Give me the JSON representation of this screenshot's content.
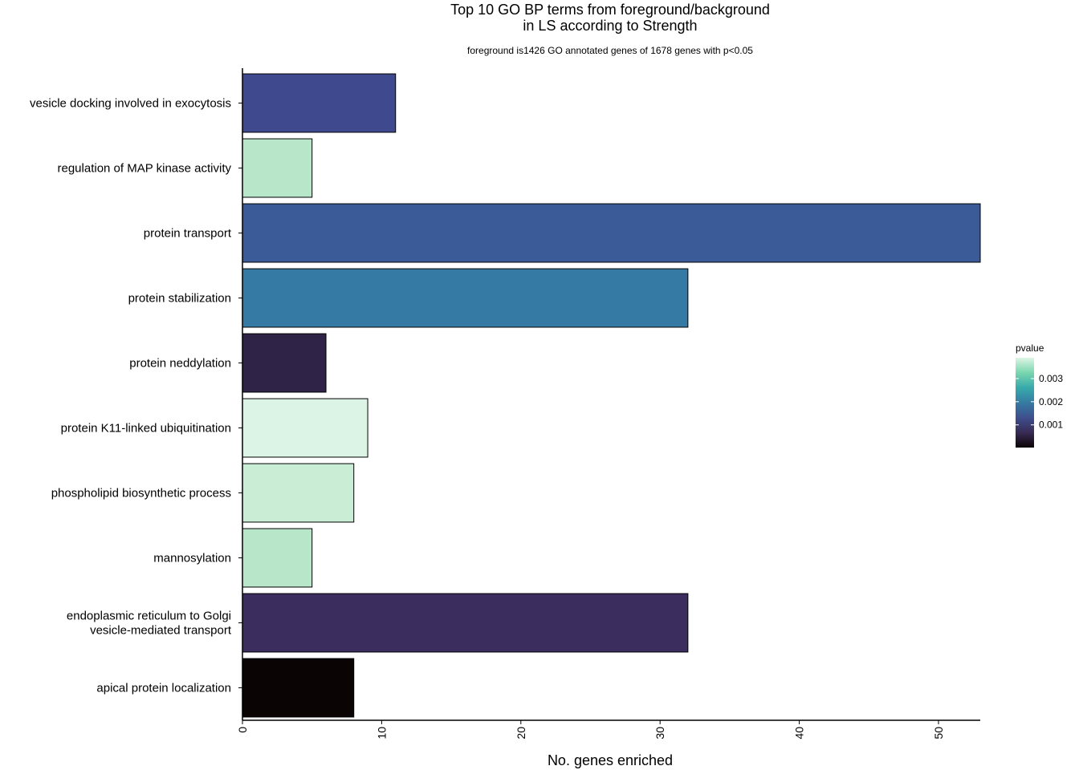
{
  "chart_data": {
    "type": "bar",
    "orientation": "horizontal",
    "title": [
      "Top 10 GO BP terms from foreground/background",
      "in LS according to Strength"
    ],
    "subtitle": "foreground is1426 GO annotated genes of 1678 genes with p<0.05",
    "xlabel": "No. genes enriched",
    "ylabel": "",
    "xlim": [
      0,
      53
    ],
    "xticks": [
      0,
      10,
      20,
      30,
      40,
      50
    ],
    "grid": false,
    "categories": [
      [
        "vesicle docking involved in exocytosis"
      ],
      [
        "regulation of MAP kinase activity"
      ],
      [
        "protein transport"
      ],
      [
        "protein stabilization"
      ],
      [
        "protein neddylation"
      ],
      [
        "protein K11-linked ubiquitination"
      ],
      [
        "phospholipid biosynthetic process"
      ],
      [
        "mannosylation"
      ],
      [
        "endoplasmic reticulum to Golgi",
        "vesicle-mediated transport"
      ],
      [
        "apical protein localization"
      ]
    ],
    "values": [
      11,
      5,
      53,
      32,
      6,
      9,
      8,
      5,
      32,
      8
    ],
    "pvalues": [
      0.0017,
      0.0033,
      0.0019,
      0.0024,
      0.0005,
      0.0038,
      0.0035,
      0.0033,
      0.0006,
      5e-05
    ],
    "bar_colors": [
      "#3F4A8E",
      "#B8E6C8",
      "#3B5B98",
      "#3579A5",
      "#2F2347",
      "#DCF4E6",
      "#C9EDD5",
      "#B8E6C8",
      "#3B2E5E",
      "#0B0405"
    ],
    "legend": {
      "title": "pvalue",
      "position": "right",
      "range": [
        2e-05,
        0.0039
      ],
      "ticks": [
        0.001,
        0.002,
        0.003
      ],
      "tick_labels": [
        "0.001",
        "0.002",
        "0.003"
      ],
      "gradient": [
        "#0B0405",
        "#382A54",
        "#3E4F8E",
        "#357BA2",
        "#38AAAC",
        "#79D6AE",
        "#DEF5E5"
      ]
    }
  }
}
